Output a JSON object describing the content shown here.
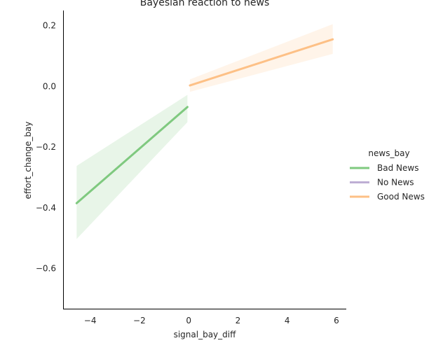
{
  "chart_data": {
    "type": "line",
    "title": "Bayesian reaction to news",
    "xlabel": "signal_bay_diff",
    "ylabel": "effort_change_bay",
    "xlim": [
      -5.1,
      6.4
    ],
    "ylim": [
      -0.735,
      0.25
    ],
    "xticks": [
      -4,
      -2,
      0,
      2,
      4,
      6
    ],
    "xtick_labels": [
      "−4",
      "−2",
      "0",
      "2",
      "4",
      "6"
    ],
    "yticks": [
      0.2,
      0.0,
      -0.2,
      -0.4,
      -0.6
    ],
    "ytick_labels": [
      "0.2",
      "0.0",
      "−0.2",
      "−0.4",
      "−0.6"
    ],
    "grid": false,
    "legend": {
      "title": "news_bay",
      "placement": "right",
      "entries": [
        "Bad News",
        "No News",
        "Good News"
      ]
    },
    "series": [
      {
        "name": "Bad News",
        "color": "#7fc97f",
        "x": [
          -4.55,
          -0.05
        ],
        "y": [
          -0.385,
          -0.068
        ],
        "ci_lower": [
          -0.503,
          -0.118
        ],
        "ci_upper": [
          -0.262,
          -0.028
        ]
      },
      {
        "name": "No News",
        "color": "#beaed4",
        "x": [],
        "y": []
      },
      {
        "name": "Good News",
        "color": "#fdc086",
        "x": [
          0.05,
          5.85
        ],
        "y": [
          0.003,
          0.155
        ],
        "ci_lower": [
          -0.018,
          0.107
        ],
        "ci_upper": [
          0.023,
          0.205
        ]
      }
    ]
  }
}
